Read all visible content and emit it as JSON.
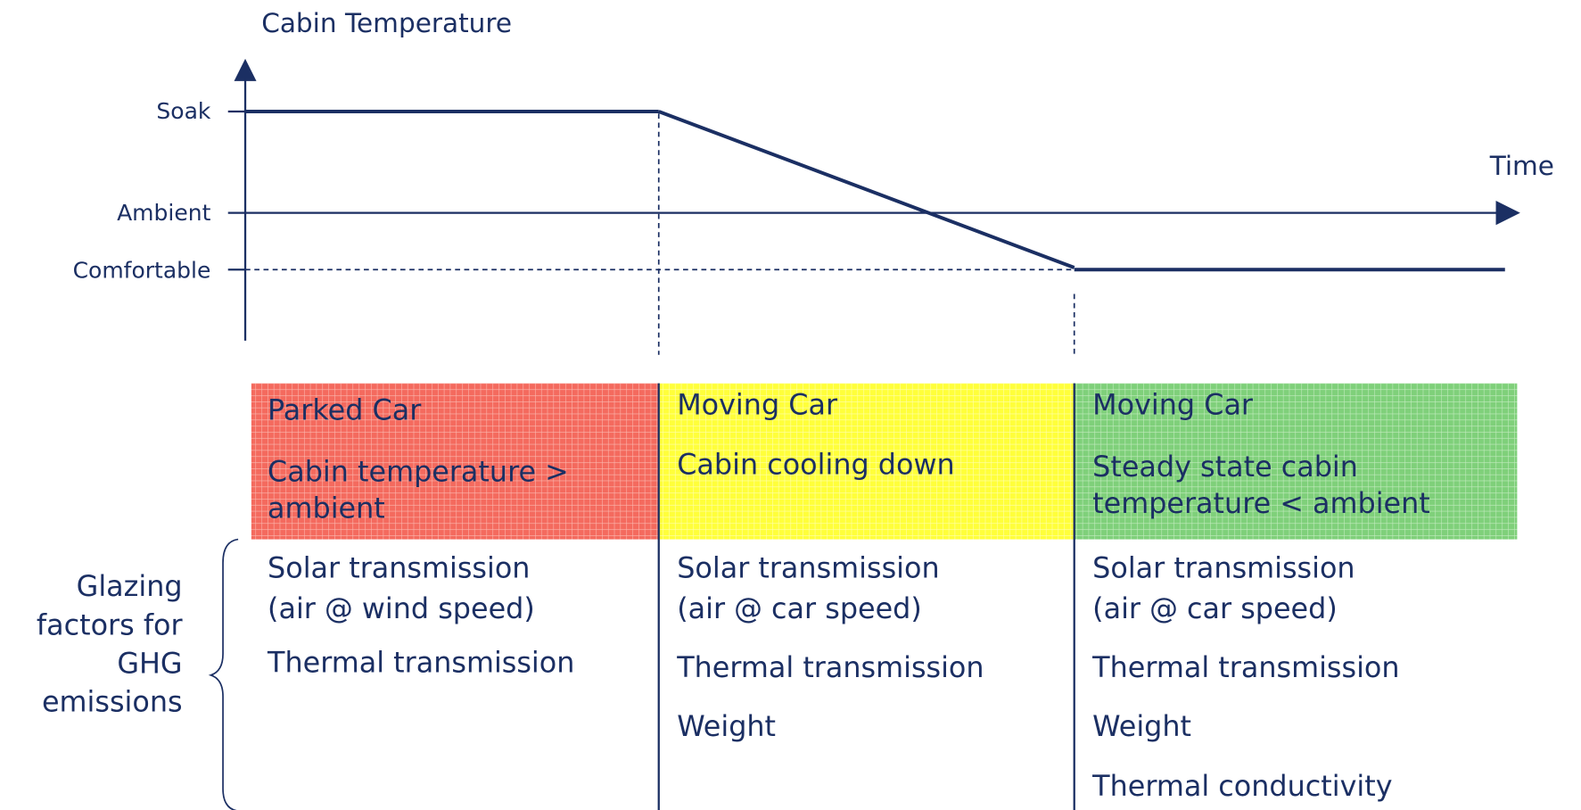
{
  "axis": {
    "title": "Cabin Temperature",
    "x_label": "Time",
    "levels": [
      "Soak",
      "Ambient",
      "Comfortable"
    ]
  },
  "side_label": [
    "Glazing",
    "factors for",
    "GHG",
    "emissions"
  ],
  "columns": [
    {
      "heading": "Parked Car",
      "state": [
        "Cabin temperature >",
        "ambient"
      ],
      "factors": [
        "Solar transmission",
        "(air @ wind speed)",
        "Thermal transmission"
      ]
    },
    {
      "heading": "Moving Car",
      "state": [
        "Cabin cooling down"
      ],
      "factors": [
        "Solar transmission",
        "(air @ car speed)",
        "Thermal transmission",
        "Weight"
      ]
    },
    {
      "heading": "Moving Car",
      "state": [
        "Steady state cabin",
        "temperature < ambient"
      ],
      "factors": [
        "Solar transmission",
        "(air @ car speed)",
        "Thermal transmission",
        "Weight",
        "Thermal conductivity"
      ]
    }
  ]
}
